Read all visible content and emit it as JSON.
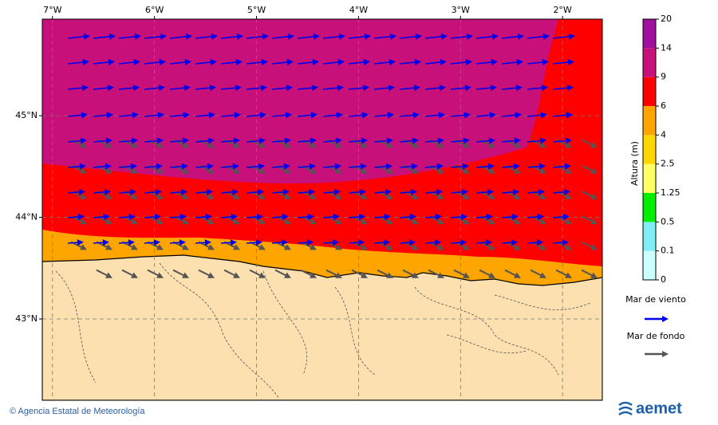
{
  "map": {
    "xlim": [
      -7.1,
      -1.61
    ],
    "ylim": [
      42.2,
      45.95
    ],
    "xticks": [
      {
        "value": -7,
        "label": "7°W"
      },
      {
        "value": -6,
        "label": "6°W"
      },
      {
        "value": -5,
        "label": "5°W"
      },
      {
        "value": -4,
        "label": "4°W"
      },
      {
        "value": -3,
        "label": "3°W"
      },
      {
        "value": -2,
        "label": "2°W"
      }
    ],
    "yticks": [
      {
        "value": 45,
        "label": "45°N"
      },
      {
        "value": 44,
        "label": "44°N"
      },
      {
        "value": 43,
        "label": "43°N"
      }
    ]
  },
  "colorbar": {
    "title": "Altura (m)",
    "ticks": [
      0,
      0.1,
      0.5,
      1.25,
      2.5,
      4,
      6,
      9,
      14,
      20
    ],
    "colors": [
      "#ccffff",
      "#80eef5",
      "#00ee00",
      "#ffff66",
      "#ffd700",
      "#ffa500",
      "#ff0000",
      "#c8107a",
      "#a0109e"
    ]
  },
  "legend": [
    {
      "label": "Mar de viento",
      "color": "#0000ee"
    },
    {
      "label": "Mar de fondo",
      "color": "#555555"
    }
  ],
  "footer": {
    "credit": "© Agencia Estatal de Meteorología",
    "logo": "aemet"
  }
}
